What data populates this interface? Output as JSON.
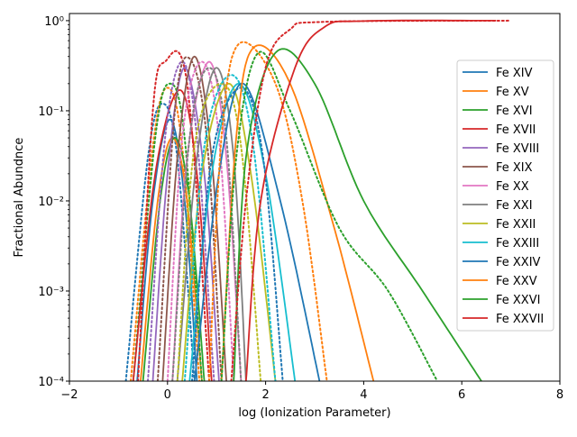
{
  "chart_data": {
    "type": "line",
    "title": "",
    "xlabel": "log (Ionization Parameter)",
    "ylabel": "Fractional Abundnce",
    "xlim": [
      -2,
      8
    ],
    "ylim": [
      0.0001,
      1.2
    ],
    "yscale": "log",
    "grid": false,
    "legend_position": "right",
    "x_ticks": [
      -2,
      0,
      2,
      4,
      6,
      8
    ],
    "x_tick_labels": [
      "−2",
      "0",
      "2",
      "4",
      "6",
      "8"
    ],
    "y_ticks": [
      0.0001,
      0.001,
      0.01,
      0.1,
      1
    ],
    "y_tick_labels": [
      "10⁻⁴",
      "10⁻³",
      "10⁻²",
      "10⁻¹",
      "10⁰"
    ],
    "series": [
      {
        "name": "Fe XIV",
        "color": "#1f77b4",
        "solid": [
          [
            -0.62,
            0.0001
          ],
          [
            -0.3,
            0.01
          ],
          [
            0.05,
            0.08
          ],
          [
            0.35,
            0.01
          ],
          [
            0.6,
            0.0001
          ]
        ],
        "dotted": [
          [
            -0.85,
            0.0001
          ],
          [
            -0.4,
            0.03
          ],
          [
            -0.1,
            0.12
          ],
          [
            0.2,
            0.03
          ],
          [
            0.55,
            0.0001
          ]
        ]
      },
      {
        "name": "Fe XV",
        "color": "#ff7f0e",
        "solid": [
          [
            -0.55,
            0.0001
          ],
          [
            -0.2,
            0.01
          ],
          [
            0.1,
            0.05
          ],
          [
            0.4,
            0.01
          ],
          [
            0.7,
            0.0001
          ]
        ],
        "dotted": [
          [
            -0.75,
            0.0001
          ],
          [
            -0.3,
            0.04
          ],
          [
            0.0,
            0.18
          ],
          [
            0.3,
            0.04
          ],
          [
            0.65,
            0.0001
          ]
        ]
      },
      {
        "name": "Fe XVI",
        "color": "#2ca02c",
        "solid": [
          [
            -0.5,
            0.0001
          ],
          [
            -0.15,
            0.01
          ],
          [
            0.15,
            0.05
          ],
          [
            0.45,
            0.01
          ],
          [
            0.75,
            0.0001
          ]
        ],
        "dotted": [
          [
            -0.7,
            0.0001
          ],
          [
            -0.25,
            0.05
          ],
          [
            0.05,
            0.2
          ],
          [
            0.35,
            0.05
          ],
          [
            0.7,
            0.0001
          ]
        ]
      },
      {
        "name": "Fe XVII",
        "color": "#d62728",
        "solid": [
          [
            -0.7,
            0.0001
          ],
          [
            -0.25,
            0.02
          ],
          [
            0.25,
            0.17
          ],
          [
            0.6,
            0.02
          ],
          [
            0.9,
            0.0001
          ]
        ],
        "dotted": [
          [
            -0.6,
            0.0001
          ],
          [
            -0.3,
            0.1
          ],
          [
            -0.05,
            0.35
          ],
          [
            0.4,
            0.2
          ],
          [
            0.85,
            0.0001
          ]
        ]
      },
      {
        "name": "Fe XVIII",
        "color": "#9467bd",
        "solid": [
          [
            -0.3,
            0.0001
          ],
          [
            0.0,
            0.02
          ],
          [
            0.35,
            0.3
          ],
          [
            0.75,
            0.02
          ],
          [
            1.05,
            0.0001
          ]
        ],
        "dotted": [
          [
            -0.4,
            0.0001
          ],
          [
            -0.05,
            0.05
          ],
          [
            0.3,
            0.35
          ],
          [
            0.6,
            0.05
          ],
          [
            0.95,
            0.0001
          ]
        ]
      },
      {
        "name": "Fe XIX",
        "color": "#8c564b",
        "solid": [
          [
            -0.1,
            0.0001
          ],
          [
            0.2,
            0.03
          ],
          [
            0.55,
            0.4
          ],
          [
            0.9,
            0.03
          ],
          [
            1.2,
            0.0001
          ]
        ],
        "dotted": [
          [
            -0.2,
            0.0001
          ],
          [
            0.15,
            0.1
          ],
          [
            0.45,
            0.38
          ],
          [
            0.8,
            0.05
          ],
          [
            1.1,
            0.0001
          ]
        ]
      },
      {
        "name": "Fe XX",
        "color": "#e377c2",
        "solid": [
          [
            0.1,
            0.0001
          ],
          [
            0.4,
            0.03
          ],
          [
            0.85,
            0.35
          ],
          [
            1.2,
            0.03
          ],
          [
            1.5,
            0.0001
          ]
        ],
        "dotted": [
          [
            0.0,
            0.0001
          ],
          [
            0.3,
            0.05
          ],
          [
            0.7,
            0.35
          ],
          [
            1.05,
            0.05
          ],
          [
            1.35,
            0.0001
          ]
        ]
      },
      {
        "name": "Fe XXI",
        "color": "#7f7f7f",
        "solid": [
          [
            0.2,
            0.0001
          ],
          [
            0.6,
            0.03
          ],
          [
            1.0,
            0.3
          ],
          [
            1.35,
            0.03
          ],
          [
            1.6,
            0.0001
          ]
        ],
        "dotted": [
          [
            0.1,
            0.0001
          ],
          [
            0.45,
            0.05
          ],
          [
            0.85,
            0.3
          ],
          [
            1.2,
            0.05
          ],
          [
            1.5,
            0.0001
          ]
        ]
      },
      {
        "name": "Fe XXII",
        "color": "#bcbd22",
        "solid": [
          [
            0.3,
            0.0001
          ],
          [
            0.7,
            0.02
          ],
          [
            1.25,
            0.2
          ],
          [
            1.7,
            0.02
          ],
          [
            2.2,
            0.0001
          ]
        ],
        "dotted": [
          [
            0.2,
            0.0001
          ],
          [
            0.55,
            0.04
          ],
          [
            1.1,
            0.2
          ],
          [
            1.5,
            0.04
          ],
          [
            1.9,
            0.0001
          ]
        ]
      },
      {
        "name": "Fe XXIII",
        "color": "#17becf",
        "solid": [
          [
            0.45,
            0.0001
          ],
          [
            0.9,
            0.02
          ],
          [
            1.45,
            0.2
          ],
          [
            2.0,
            0.02
          ],
          [
            2.6,
            0.0001
          ]
        ],
        "dotted": [
          [
            0.35,
            0.0001
          ],
          [
            0.75,
            0.04
          ],
          [
            1.3,
            0.25
          ],
          [
            1.75,
            0.04
          ],
          [
            2.2,
            0.0001
          ]
        ]
      },
      {
        "name": "Fe XXIV",
        "color": "#1f77b4",
        "solid": [
          [
            0.55,
            0.0001
          ],
          [
            1.05,
            0.02
          ],
          [
            1.55,
            0.2
          ],
          [
            2.3,
            0.01
          ],
          [
            3.1,
            0.0001
          ]
        ],
        "dotted": [
          [
            0.5,
            0.0001
          ],
          [
            0.9,
            0.03
          ],
          [
            1.5,
            0.18
          ],
          [
            1.95,
            0.03
          ],
          [
            2.35,
            0.0001
          ]
        ]
      },
      {
        "name": "Fe XXV",
        "color": "#ff7f0e",
        "solid": [
          [
            1.1,
            0.0001
          ],
          [
            1.4,
            0.05
          ],
          [
            1.75,
            0.5
          ],
          [
            2.5,
            0.2
          ],
          [
            3.4,
            0.005
          ],
          [
            4.2,
            0.0001
          ]
        ],
        "dotted": [
          [
            0.85,
            0.0001
          ],
          [
            1.1,
            0.05
          ],
          [
            1.45,
            0.55
          ],
          [
            2.2,
            0.2
          ],
          [
            2.75,
            0.01
          ],
          [
            3.25,
            0.0001
          ]
        ]
      },
      {
        "name": "Fe XXVI",
        "color": "#2ca02c",
        "solid": [
          [
            1.35,
            0.0001
          ],
          [
            1.6,
            0.03
          ],
          [
            2.2,
            0.44
          ],
          [
            3.0,
            0.2
          ],
          [
            4.0,
            0.01
          ],
          [
            5.2,
            0.001
          ],
          [
            6.4,
            0.0001
          ]
        ],
        "dotted": [
          [
            1.1,
            0.0001
          ],
          [
            1.4,
            0.03
          ],
          [
            1.85,
            0.44
          ],
          [
            2.5,
            0.1
          ],
          [
            3.5,
            0.005
          ],
          [
            4.5,
            0.001
          ],
          [
            5.5,
            0.0001
          ]
        ]
      },
      {
        "name": "Fe XXVII",
        "color": "#d62728",
        "solid": [
          [
            1.6,
            0.0001
          ],
          [
            1.9,
            0.01
          ],
          [
            2.6,
            0.3
          ],
          [
            3.2,
            0.85
          ],
          [
            4.0,
            0.99
          ],
          [
            6.7,
            1.0
          ]
        ],
        "dotted": [
          [
            1.3,
            0.0001
          ],
          [
            1.6,
            0.01
          ],
          [
            2.0,
            0.3
          ],
          [
            2.5,
            0.8
          ],
          [
            3.2,
            0.97
          ],
          [
            7.0,
            1.0
          ]
        ]
      }
    ]
  }
}
